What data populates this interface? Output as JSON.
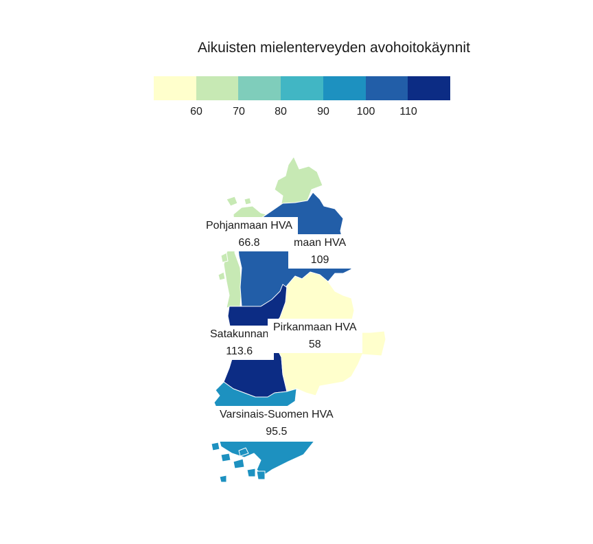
{
  "title": "Aikuisten mielenterveyden avohoitokäynnit",
  "legend": {
    "colors": [
      "#ffffcc",
      "#c7e9b4",
      "#7fcdbb",
      "#41b6c4",
      "#1d91c0",
      "#225ea8",
      "#0c2c84"
    ],
    "ticks": [
      "60",
      "70",
      "80",
      "90",
      "100",
      "110"
    ]
  },
  "regions": [
    {
      "name": "Pohjanmaan HVA",
      "value": "66.8",
      "color": "#c7e9b4"
    },
    {
      "name": "Etelä-Pohjanmaan HVA",
      "value": "109",
      "color": "#225ea8"
    },
    {
      "name": "Satakunnan HVA",
      "value": "113.6",
      "color": "#0c2c84"
    },
    {
      "name": "Pirkanmaan HVA",
      "value": "58",
      "color": "#ffffcc"
    },
    {
      "name": "Varsinais-Suomen HVA",
      "value": "95.5",
      "color": "#1d91c0"
    }
  ],
  "labels": {
    "pohjanmaa": {
      "name": "Pohjanmaan HVA",
      "value": "66.8"
    },
    "etela_pohjanmaa": {
      "name": "maan HVA",
      "value": "109"
    },
    "satakunta": {
      "name": "Satakunnan",
      "value": "113.6"
    },
    "pirkanmaa": {
      "name": "Pirkanmaan HVA",
      "value": "58"
    },
    "varsinais_suomi": {
      "name": "Varsinais-Suomen HVA",
      "value": "95.5"
    }
  }
}
